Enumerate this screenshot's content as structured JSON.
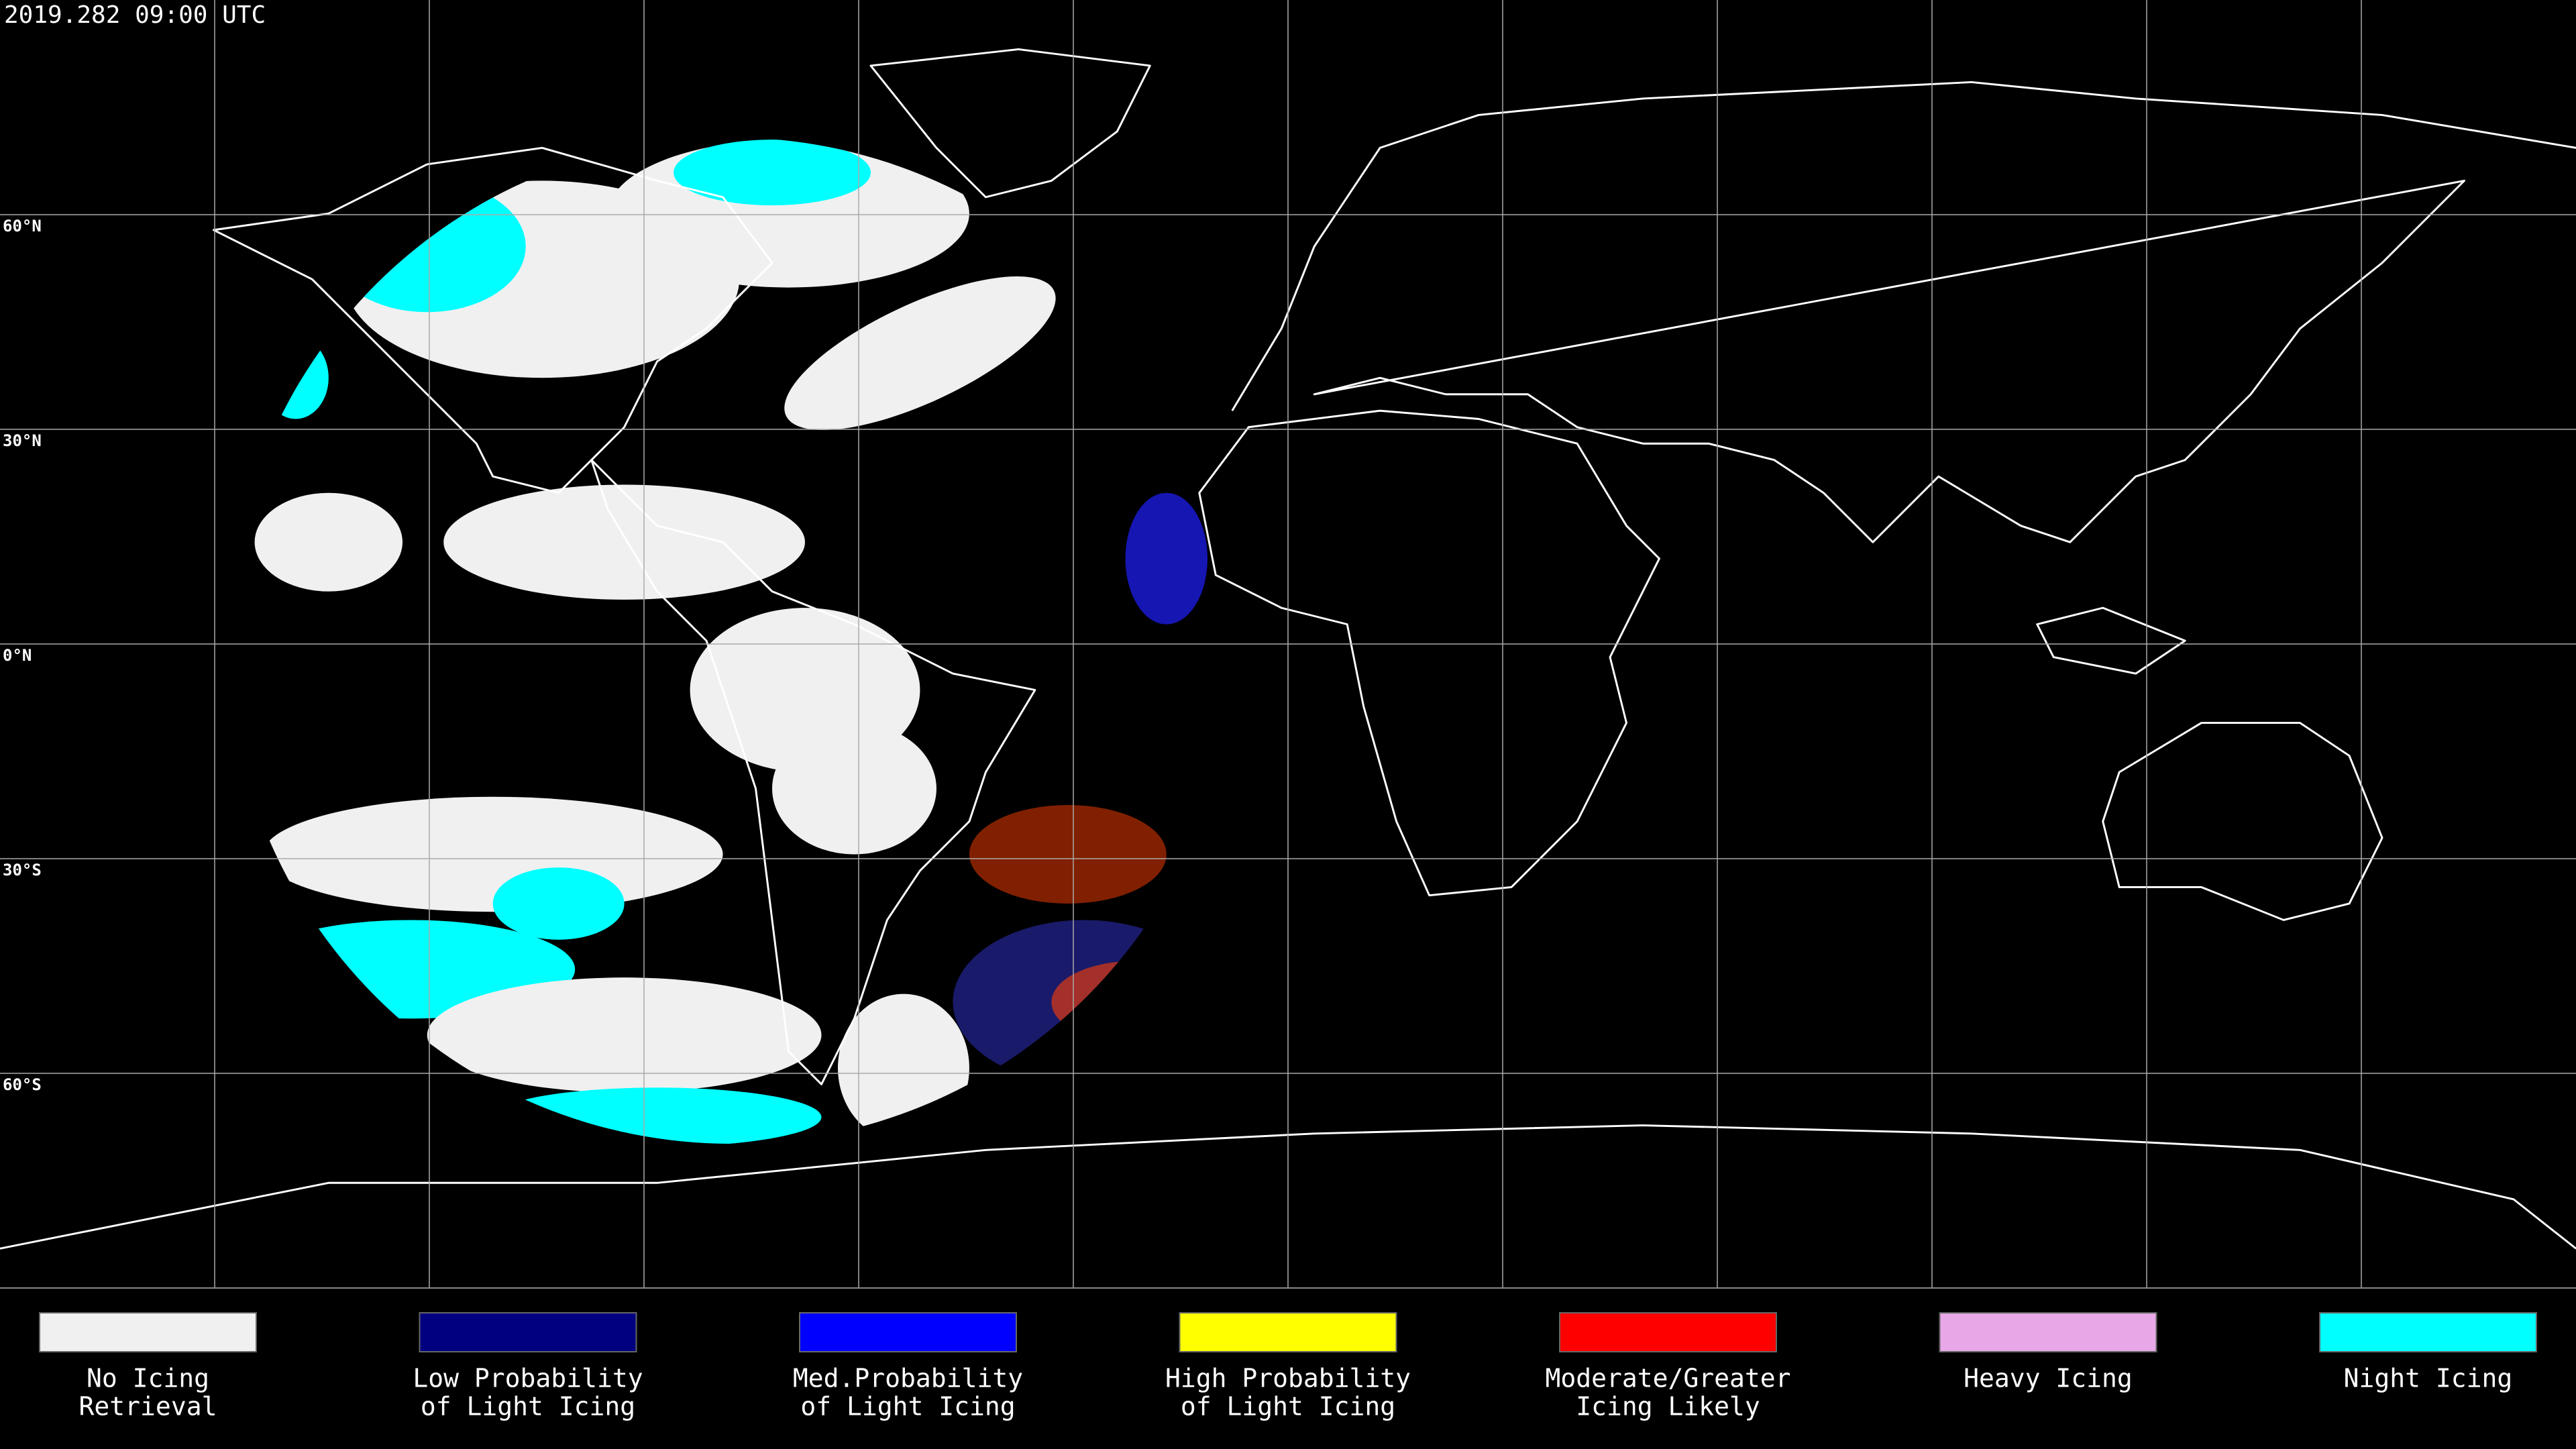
{
  "header": {
    "timestamp": "2019.282 09:00 UTC"
  },
  "map": {
    "lat_labels": [
      "60°N",
      "30°N",
      "0°N",
      "30°S",
      "60°S"
    ]
  },
  "legend": [
    {
      "label": [
        "No Icing",
        "Retrieval"
      ],
      "color": "#f0f0f0"
    },
    {
      "label": [
        "Low Probability",
        "of Light Icing"
      ],
      "color": "#000080"
    },
    {
      "label": [
        "Med.Probability",
        "of Light Icing"
      ],
      "color": "#0000ff"
    },
    {
      "label": [
        "High Probability",
        "of Light Icing"
      ],
      "color": "#ffff00"
    },
    {
      "label": [
        "Moderate/Greater",
        "Icing Likely"
      ],
      "color": "#ff0000"
    },
    {
      "label": [
        "Heavy Icing"
      ],
      "color": "#e8a8e8"
    },
    {
      "label": [
        "Night Icing"
      ],
      "color": "#00ffff"
    }
  ]
}
